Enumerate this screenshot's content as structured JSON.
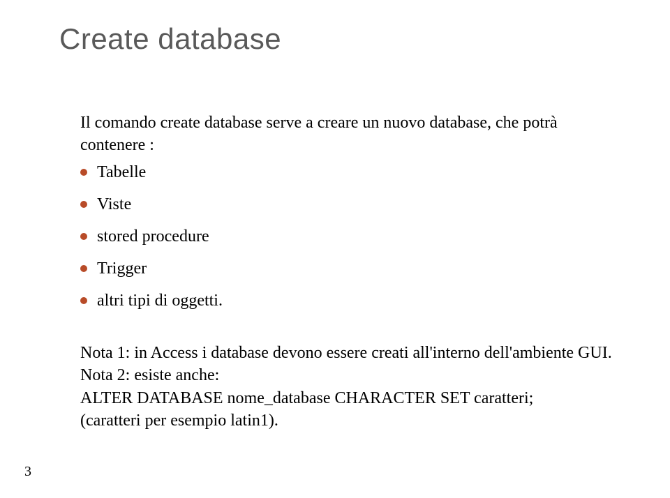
{
  "title": {
    "text": "Create database",
    "color": "#595959",
    "fontsize": 42
  },
  "intro": {
    "text": "Il comando create database serve a creare un nuovo database, che potrà contenere :",
    "fontsize": 24,
    "color": "#000000"
  },
  "bullets": {
    "fontsize": 24,
    "text_color": "#000000",
    "dot_color": "#b84b28",
    "row_gap": 46,
    "items": [
      "Tabelle",
      "Viste",
      "stored procedure",
      "Trigger",
      "altri tipi di oggetti."
    ]
  },
  "notes": {
    "fontsize": 24,
    "color": "#000000",
    "line_height": 1.35,
    "lines": [
      "Nota 1: in Access i database devono essere creati all'interno dell'ambiente GUI.",
      "Nota 2: esiste anche:",
      "ALTER DATABASE nome_database CHARACTER SET caratteri;",
      "(caratteri per esempio latin1)."
    ]
  },
  "page_number": {
    "text": "3",
    "fontsize": 20,
    "color": "#000000"
  }
}
